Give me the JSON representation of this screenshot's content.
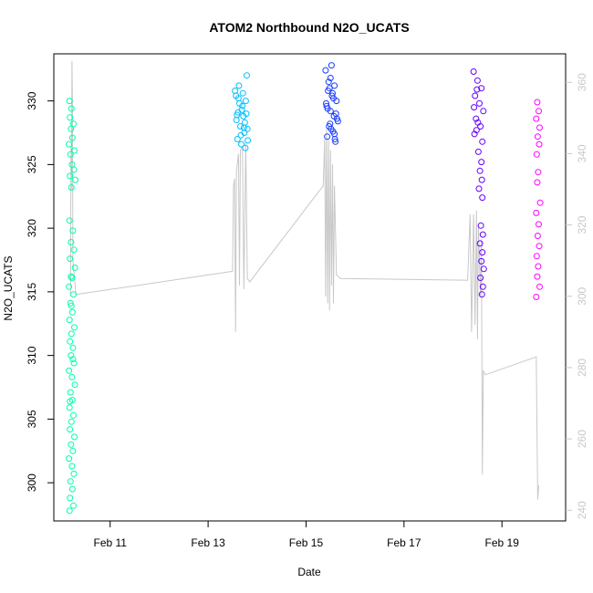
{
  "chart_data": {
    "type": "scatter",
    "title": "ATOM2 Northbound N2O_UCATS",
    "xlabel": "Date",
    "ylabel": "N2O_UCATS",
    "x_unit": "days in February",
    "xlim": [
      9.85,
      20.3
    ],
    "ylim": [
      297.0,
      333.7
    ],
    "y2lim": [
      237.0,
      368.0
    ],
    "x_ticks": [
      {
        "value": 11,
        "label": "Feb 11"
      },
      {
        "value": 13,
        "label": "Feb 13"
      },
      {
        "value": 15,
        "label": "Feb 15"
      },
      {
        "value": 17,
        "label": "Feb 17"
      },
      {
        "value": 19,
        "label": "Feb 19"
      }
    ],
    "y_ticks": [
      300,
      305,
      310,
      315,
      320,
      325,
      330
    ],
    "y2_ticks": [
      240,
      260,
      280,
      300,
      320,
      340,
      360
    ],
    "grid": false,
    "legend": "none",
    "series": [
      {
        "color": "#00ffaa",
        "points": [
          [
            10.17,
            330.0
          ],
          [
            10.21,
            329.4
          ],
          [
            10.18,
            328.7
          ],
          [
            10.25,
            328.2
          ],
          [
            10.2,
            327.8
          ],
          [
            10.23,
            327.1
          ],
          [
            10.16,
            326.6
          ],
          [
            10.27,
            326.1
          ],
          [
            10.19,
            325.8
          ],
          [
            10.22,
            325.0
          ],
          [
            10.26,
            324.6
          ],
          [
            10.18,
            324.1
          ],
          [
            10.29,
            323.8
          ],
          [
            10.21,
            323.2
          ],
          [
            10.17,
            320.6
          ],
          [
            10.24,
            319.8
          ],
          [
            10.2,
            318.9
          ],
          [
            10.26,
            318.3
          ],
          [
            10.18,
            317.6
          ],
          [
            10.28,
            316.9
          ],
          [
            10.22,
            316.1
          ],
          [
            10.16,
            315.4
          ],
          [
            10.25,
            314.8
          ],
          [
            10.19,
            314.1
          ],
          [
            10.23,
            313.4
          ],
          [
            10.17,
            312.8
          ],
          [
            10.27,
            312.2
          ],
          [
            10.21,
            311.7
          ],
          [
            10.18,
            311.1
          ],
          [
            10.24,
            310.6
          ],
          [
            10.2,
            310.0
          ],
          [
            10.26,
            309.4
          ],
          [
            10.16,
            308.8
          ],
          [
            10.22,
            308.3
          ],
          [
            10.28,
            307.7
          ],
          [
            10.19,
            307.1
          ],
          [
            10.23,
            306.5
          ],
          [
            10.17,
            305.9
          ],
          [
            10.25,
            305.3
          ],
          [
            10.21,
            304.8
          ],
          [
            10.18,
            304.2
          ],
          [
            10.27,
            303.6
          ],
          [
            10.2,
            303.0
          ],
          [
            10.24,
            302.5
          ],
          [
            10.16,
            301.9
          ],
          [
            10.22,
            301.3
          ],
          [
            10.26,
            300.7
          ],
          [
            10.19,
            300.1
          ],
          [
            10.23,
            299.5
          ],
          [
            10.18,
            298.8
          ],
          [
            10.25,
            298.2
          ],
          [
            10.17,
            297.8
          ],
          [
            10.21,
            313.9
          ],
          [
            10.2,
            316.2
          ],
          [
            10.24,
            309.7
          ],
          [
            10.18,
            306.4
          ]
        ]
      },
      {
        "color": "#00bfff",
        "points": [
          [
            13.55,
            330.8
          ],
          [
            13.62,
            330.2
          ],
          [
            13.7,
            329.6
          ],
          [
            13.78,
            329.0
          ],
          [
            13.58,
            328.5
          ],
          [
            13.66,
            328.0
          ],
          [
            13.74,
            327.5
          ],
          [
            13.6,
            327.0
          ],
          [
            13.68,
            326.6
          ],
          [
            13.76,
            326.3
          ],
          [
            13.64,
            329.8
          ],
          [
            13.72,
            328.8
          ],
          [
            13.8,
            327.8
          ],
          [
            13.57,
            330.4
          ],
          [
            13.69,
            329.3
          ],
          [
            13.75,
            328.3
          ],
          [
            13.81,
            326.9
          ],
          [
            13.63,
            331.2
          ],
          [
            13.71,
            330.6
          ],
          [
            13.59,
            328.9
          ],
          [
            13.67,
            327.3
          ],
          [
            13.79,
            332.0
          ],
          [
            13.77,
            330.0
          ],
          [
            13.61,
            329.1
          ],
          [
            13.73,
            327.9
          ]
        ]
      },
      {
        "color": "#1b3cff",
        "points": [
          [
            15.4,
            332.4
          ],
          [
            15.5,
            331.8
          ],
          [
            15.58,
            331.2
          ],
          [
            15.45,
            330.8
          ],
          [
            15.53,
            330.4
          ],
          [
            15.62,
            330.0
          ],
          [
            15.42,
            329.6
          ],
          [
            15.5,
            329.2
          ],
          [
            15.57,
            328.8
          ],
          [
            15.65,
            328.4
          ],
          [
            15.47,
            328.0
          ],
          [
            15.55,
            327.6
          ],
          [
            15.43,
            327.2
          ],
          [
            15.6,
            326.8
          ],
          [
            15.52,
            332.8
          ],
          [
            15.48,
            331.0
          ],
          [
            15.56,
            330.2
          ],
          [
            15.44,
            329.4
          ],
          [
            15.63,
            328.6
          ],
          [
            15.51,
            327.8
          ],
          [
            15.59,
            327.0
          ],
          [
            15.46,
            331.5
          ],
          [
            15.54,
            330.6
          ],
          [
            15.41,
            329.8
          ],
          [
            15.61,
            329.0
          ],
          [
            15.49,
            328.2
          ],
          [
            15.58,
            327.4
          ]
        ]
      },
      {
        "color": "#6600ff",
        "points": [
          [
            18.42,
            332.3
          ],
          [
            18.5,
            331.6
          ],
          [
            18.58,
            331.0
          ],
          [
            18.45,
            330.4
          ],
          [
            18.54,
            329.8
          ],
          [
            18.62,
            329.2
          ],
          [
            18.47,
            328.6
          ],
          [
            18.56,
            328.0
          ],
          [
            18.44,
            327.4
          ],
          [
            18.6,
            326.8
          ],
          [
            18.52,
            326.0
          ],
          [
            18.58,
            325.2
          ],
          [
            18.55,
            324.5
          ],
          [
            18.59,
            323.8
          ],
          [
            18.53,
            323.1
          ],
          [
            18.6,
            322.4
          ],
          [
            18.57,
            320.2
          ],
          [
            18.61,
            319.5
          ],
          [
            18.55,
            318.8
          ],
          [
            18.6,
            318.1
          ],
          [
            18.58,
            317.4
          ],
          [
            18.63,
            316.8
          ],
          [
            18.56,
            316.1
          ],
          [
            18.61,
            315.4
          ],
          [
            18.59,
            314.8
          ],
          [
            18.49,
            330.9
          ],
          [
            18.43,
            329.5
          ],
          [
            18.51,
            328.3
          ],
          [
            18.48,
            327.7
          ]
        ]
      },
      {
        "color": "#ff00ff",
        "points": [
          [
            19.72,
            329.9
          ],
          [
            19.75,
            329.2
          ],
          [
            19.7,
            328.6
          ],
          [
            19.77,
            327.9
          ],
          [
            19.73,
            327.2
          ],
          [
            19.76,
            326.6
          ],
          [
            19.71,
            325.8
          ],
          [
            19.74,
            324.4
          ],
          [
            19.72,
            323.6
          ],
          [
            19.78,
            322.0
          ],
          [
            19.7,
            321.2
          ],
          [
            19.75,
            320.3
          ],
          [
            19.73,
            319.4
          ],
          [
            19.76,
            318.6
          ],
          [
            19.71,
            317.8
          ],
          [
            19.74,
            317.0
          ],
          [
            19.72,
            316.2
          ],
          [
            19.77,
            315.4
          ],
          [
            19.7,
            314.6
          ]
        ]
      }
    ],
    "secondary_line": {
      "color": "#c8c8c8",
      "points": [
        [
          10.19,
          300.0
        ],
        [
          10.2,
          342.0
        ],
        [
          10.21,
          330.0
        ],
        [
          10.22,
          366.0
        ],
        [
          10.23,
          355.0
        ],
        [
          10.24,
          310.0
        ],
        [
          10.3,
          300.5
        ],
        [
          13.5,
          307.0
        ],
        [
          13.52,
          331.0
        ],
        [
          13.54,
          333.0
        ],
        [
          13.56,
          290.0
        ],
        [
          13.58,
          335.0
        ],
        [
          13.62,
          340.0
        ],
        [
          13.64,
          303.0
        ],
        [
          13.66,
          341.0
        ],
        [
          13.7,
          342.0
        ],
        [
          13.73,
          302.0
        ],
        [
          13.77,
          343.0
        ],
        [
          13.8,
          305.0
        ],
        [
          13.85,
          304.0
        ],
        [
          15.35,
          331.0
        ],
        [
          15.38,
          344.0
        ],
        [
          15.4,
          300.0
        ],
        [
          15.42,
          347.0
        ],
        [
          15.44,
          298.0
        ],
        [
          15.46,
          344.0
        ],
        [
          15.48,
          296.0
        ],
        [
          15.5,
          341.0
        ],
        [
          15.52,
          303.0
        ],
        [
          15.54,
          337.0
        ],
        [
          15.56,
          298.0
        ],
        [
          15.58,
          331.0
        ],
        [
          15.62,
          306.0
        ],
        [
          15.7,
          305.0
        ],
        [
          18.3,
          304.5
        ],
        [
          18.35,
          323.0
        ],
        [
          18.38,
          290.0
        ],
        [
          18.42,
          323.0
        ],
        [
          18.45,
          292.0
        ],
        [
          18.48,
          324.0
        ],
        [
          18.5,
          288.0
        ],
        [
          18.52,
          320.0
        ],
        [
          18.56,
          300.0
        ],
        [
          18.58,
          316.0
        ],
        [
          18.6,
          250.0
        ],
        [
          18.62,
          279.0
        ],
        [
          18.66,
          278.0
        ],
        [
          19.7,
          283.0
        ],
        [
          19.73,
          243.0
        ],
        [
          19.75,
          247.0
        ]
      ]
    }
  }
}
